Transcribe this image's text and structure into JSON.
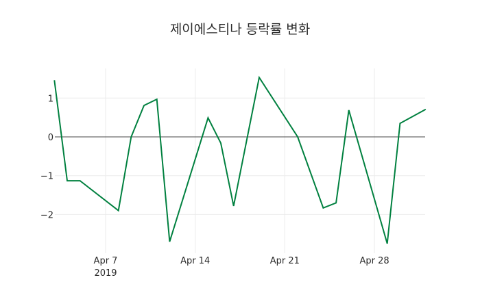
{
  "chart_data": {
    "type": "line",
    "title": "제이에스티나 등락률 변화",
    "xlabel": "",
    "ylabel": "",
    "x": [
      "2019-04-03",
      "2019-04-04",
      "2019-04-05",
      "2019-04-08",
      "2019-04-09",
      "2019-04-10",
      "2019-04-11",
      "2019-04-12",
      "2019-04-15",
      "2019-04-16",
      "2019-04-17",
      "2019-04-19",
      "2019-04-22",
      "2019-04-24",
      "2019-04-25",
      "2019-04-26",
      "2019-04-29",
      "2019-04-30",
      "2019-05-02"
    ],
    "series": [
      {
        "name": "등락률",
        "color": "#00803f",
        "values": [
          1.46,
          -1.13,
          -1.13,
          -1.9,
          0.0,
          0.81,
          0.97,
          -2.7,
          0.49,
          -0.16,
          -1.78,
          1.53,
          0.0,
          -1.83,
          -1.7,
          0.69,
          -2.75,
          0.35,
          0.71
        ]
      }
    ],
    "x_ticks": [
      {
        "label": "Apr 7",
        "sublabel": "2019",
        "date": "2019-04-07"
      },
      {
        "label": "Apr 14",
        "sublabel": "",
        "date": "2019-04-14"
      },
      {
        "label": "Apr 21",
        "sublabel": "",
        "date": "2019-04-21"
      },
      {
        "label": "Apr 28",
        "sublabel": "",
        "date": "2019-04-28"
      }
    ],
    "y_ticks": [
      1,
      0,
      -1,
      -2
    ],
    "y_tick_labels": [
      "1",
      "0",
      "−1",
      "−2"
    ],
    "ylim": [
      -2.95,
      1.75
    ],
    "grid": true,
    "zero_line": true,
    "legend": "none"
  }
}
